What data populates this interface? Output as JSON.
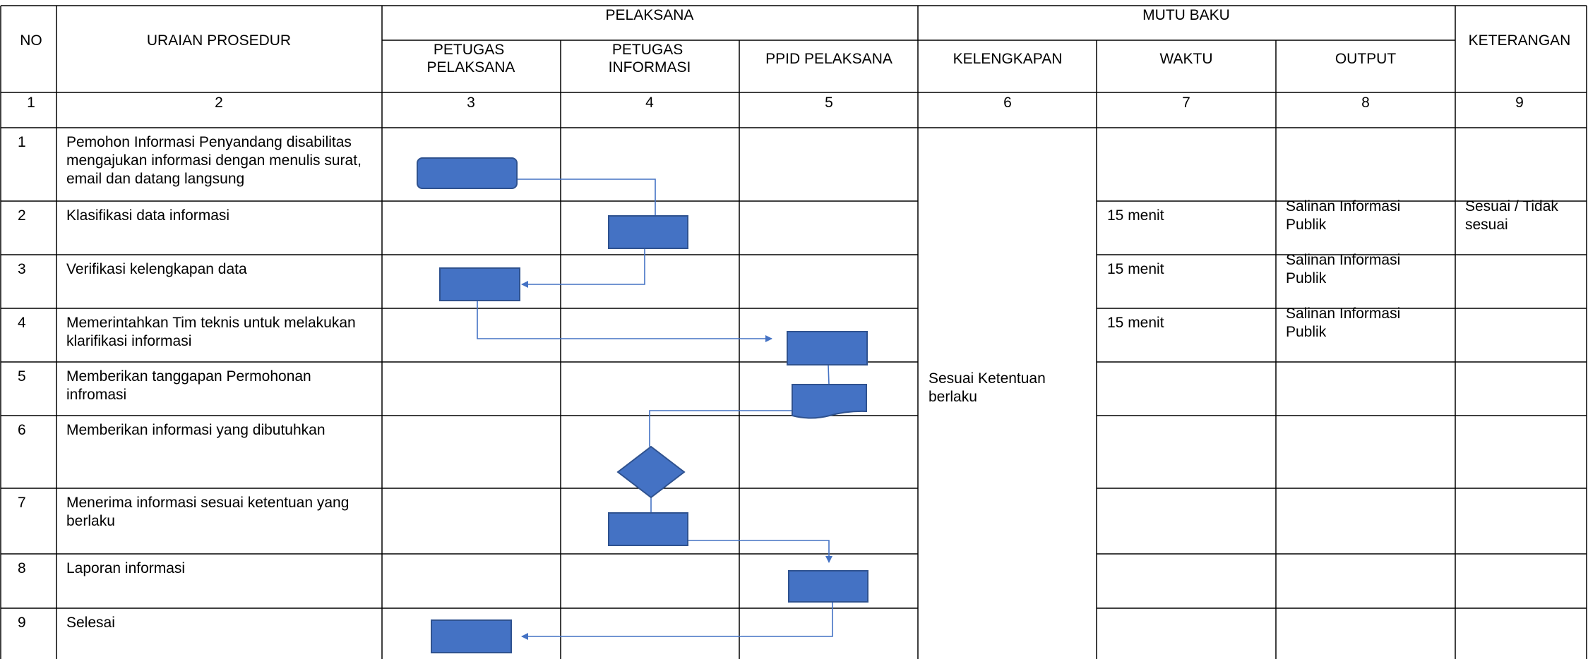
{
  "header": {
    "no": "NO",
    "uraian": "URAIAN PROSEDUR",
    "pelaksana": "PELAKSANA",
    "mutu_baku": "MUTU BAKU",
    "keterangan": "KETERANGAN",
    "sub": {
      "petugas_pelaksana": [
        "PETUGAS",
        "PELAKSANA"
      ],
      "petugas_informasi": [
        "PETUGAS",
        "INFORMASI"
      ],
      "ppid_pelaksana": "PPID PELAKSANA",
      "kelengkapan": "KELENGKAPAN",
      "waktu": "WAKTU",
      "output": "OUTPUT"
    },
    "column_numbers": [
      "1",
      "2",
      "3",
      "4",
      "5",
      "6",
      "7",
      "8",
      "9"
    ]
  },
  "rows": [
    {
      "no": "1",
      "uraian": [
        "Pemohon Informasi Penyandang disabilitas",
        "mengajukan informasi dengan menulis surat,",
        "email dan datang langsung"
      ],
      "waktu": "",
      "output": [],
      "keterangan": []
    },
    {
      "no": "2",
      "uraian": [
        "Klasifikasi data informasi"
      ],
      "waktu": "15 menit",
      "output": [
        "Salinan Informasi",
        "Publik"
      ],
      "keterangan": [
        "Sesuai / Tidak",
        "sesuai"
      ]
    },
    {
      "no": "3",
      "uraian": [
        "Verifikasi kelengkapan data"
      ],
      "waktu": "15 menit",
      "output": [
        "Salinan Informasi",
        "Publik"
      ],
      "keterangan": []
    },
    {
      "no": "4",
      "uraian": [
        "Memerintahkan Tim teknis untuk melakukan",
        "klarifikasi informasi"
      ],
      "waktu": "15 menit",
      "output": [
        "Salinan Informasi",
        "Publik"
      ],
      "keterangan": []
    },
    {
      "no": "5",
      "uraian": [
        "Memberikan tanggapan Permohonan",
        "infromasi"
      ],
      "waktu": "",
      "output": [],
      "keterangan": []
    },
    {
      "no": "6",
      "uraian": [
        "Memberikan informasi yang dibutuhkan"
      ],
      "waktu": "",
      "output": [],
      "keterangan": []
    },
    {
      "no": "7",
      "uraian": [
        "Menerima informasi sesuai ketentuan yang",
        "berlaku"
      ],
      "waktu": "",
      "output": [],
      "keterangan": []
    },
    {
      "no": "8",
      "uraian": [
        "Laporan informasi"
      ],
      "waktu": "",
      "output": [],
      "keterangan": []
    },
    {
      "no": "9",
      "uraian": [
        "Selesai"
      ],
      "waktu": "",
      "output": [],
      "keterangan": []
    }
  ],
  "kelengkapan_merged": [
    "Sesuai Ketentuan",
    "berlaku"
  ],
  "flow": {
    "steps": [
      {
        "row": "1",
        "lane": "petugas_pelaksana",
        "shape": "terminator"
      },
      {
        "row": "2",
        "lane": "petugas_informasi",
        "shape": "process"
      },
      {
        "row": "3",
        "lane": "petugas_pelaksana",
        "shape": "process"
      },
      {
        "row": "4",
        "lane": "ppid_pelaksana",
        "shape": "process"
      },
      {
        "row": "5",
        "lane": "ppid_pelaksana",
        "shape": "document"
      },
      {
        "row": "6",
        "lane": "petugas_informasi",
        "shape": "decision"
      },
      {
        "row": "7",
        "lane": "petugas_informasi",
        "shape": "process"
      },
      {
        "row": "8",
        "lane": "ppid_pelaksana",
        "shape": "process"
      },
      {
        "row": "9",
        "lane": "petugas_pelaksana",
        "shape": "process"
      }
    ],
    "colors": {
      "fill": "#4472C4",
      "stroke": "#2F528F",
      "connector": "#4472C4"
    }
  }
}
